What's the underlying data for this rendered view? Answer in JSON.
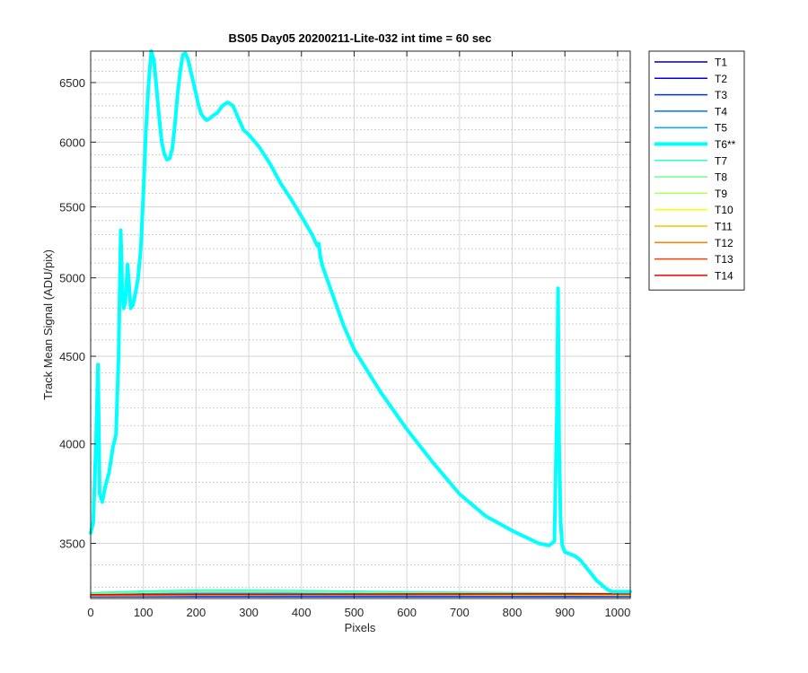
{
  "chart_data": {
    "type": "line",
    "title": "BS05 Day05 20200211-Lite-032 int time = 60 sec",
    "xlabel": "Pixels",
    "ylabel": "Track Mean Signal (ADU/pix)",
    "xlim": [
      0,
      1024
    ],
    "ylim": [
      3250,
      6780
    ],
    "y_scale": "log",
    "grid": true,
    "minor_grid": true,
    "legend_position": "outside-right",
    "xticks": [
      0,
      100,
      200,
      300,
      400,
      500,
      600,
      700,
      800,
      900,
      1000
    ],
    "yticks": [
      3500,
      4000,
      4500,
      5000,
      5500,
      6000,
      6500
    ],
    "yminor": [
      3300,
      3400,
      3500,
      3600,
      3700,
      3800,
      3900,
      4000,
      4100,
      4200,
      4300,
      4400,
      4500,
      4600,
      4700,
      4800,
      4900,
      5000,
      5100,
      5200,
      5300,
      5400,
      5500,
      5600,
      5700,
      5800,
      5900,
      6000,
      6100,
      6200,
      6300,
      6400,
      6500,
      6600,
      6700
    ],
    "highlighted_series": "T6**",
    "series": [
      {
        "name": "T1",
        "color": "#00008f",
        "x": [
          0,
          1024
        ],
        "y": [
          3258,
          3258
        ]
      },
      {
        "name": "T2",
        "color": "#0000df",
        "x": [
          0,
          1024
        ],
        "y": [
          3259,
          3259
        ]
      },
      {
        "name": "T3",
        "color": "#0030ff",
        "x": [
          0,
          1024
        ],
        "y": [
          3260,
          3260
        ]
      },
      {
        "name": "T4",
        "color": "#0070ff",
        "x": [
          0,
          1024
        ],
        "y": [
          3261,
          3262
        ]
      },
      {
        "name": "T5",
        "color": "#00b0ff",
        "x": [
          0,
          100,
          200,
          300,
          400,
          600,
          800,
          1024
        ],
        "y": [
          3266,
          3271,
          3273,
          3273,
          3272,
          3270,
          3268,
          3265
        ]
      },
      {
        "name": "T6**",
        "color": "#00ffff",
        "bold": true,
        "x": [
          0,
          5,
          10,
          14,
          17,
          22,
          28,
          35,
          42,
          48,
          53,
          57,
          60,
          63,
          66,
          70,
          73,
          76,
          80,
          85,
          90,
          95,
          100,
          105,
          110,
          115,
          120,
          125,
          130,
          135,
          140,
          145,
          150,
          155,
          160,
          165,
          170,
          175,
          180,
          185,
          190,
          195,
          200,
          205,
          210,
          215,
          220,
          225,
          230,
          240,
          250,
          260,
          270,
          280,
          290,
          300,
          320,
          340,
          360,
          380,
          400,
          420,
          430,
          433,
          436,
          440,
          460,
          480,
          500,
          550,
          600,
          650,
          700,
          750,
          800,
          850,
          870,
          880,
          885,
          887,
          889,
          892,
          895,
          900,
          910,
          920,
          930,
          940,
          960,
          980,
          990,
          1000,
          1024
        ],
        "y": [
          3550,
          3600,
          4000,
          4450,
          3740,
          3700,
          3780,
          3850,
          3980,
          4050,
          4500,
          5330,
          4900,
          4800,
          4850,
          5090,
          4950,
          4800,
          4820,
          4900,
          5000,
          5200,
          5600,
          6100,
          6500,
          6780,
          6700,
          6450,
          6200,
          6000,
          5900,
          5860,
          5870,
          5950,
          6150,
          6400,
          6600,
          6750,
          6760,
          6700,
          6600,
          6500,
          6400,
          6300,
          6230,
          6200,
          6180,
          6190,
          6210,
          6240,
          6300,
          6330,
          6300,
          6200,
          6100,
          6060,
          5960,
          5830,
          5680,
          5560,
          5430,
          5300,
          5220,
          5235,
          5140,
          5080,
          4880,
          4690,
          4540,
          4290,
          4080,
          3900,
          3740,
          3630,
          3560,
          3500,
          3490,
          3510,
          4200,
          4930,
          4000,
          3600,
          3490,
          3460,
          3450,
          3440,
          3420,
          3390,
          3330,
          3290,
          3280,
          3280,
          3280
        ]
      },
      {
        "name": "T7",
        "color": "#30ffcf",
        "x": [
          0,
          100,
          200,
          300,
          400,
          600,
          800,
          1024
        ],
        "y": [
          3275,
          3283,
          3287,
          3287,
          3285,
          3280,
          3276,
          3272
        ]
      },
      {
        "name": "T8",
        "color": "#70ff8f",
        "x": [
          0,
          100,
          200,
          300,
          400,
          600,
          800,
          1024
        ],
        "y": [
          3270,
          3277,
          3280,
          3280,
          3278,
          3274,
          3271,
          3268
        ]
      },
      {
        "name": "T9",
        "color": "#afff50",
        "x": [
          0,
          200,
          400,
          600,
          800,
          1024
        ],
        "y": [
          3264,
          3268,
          3268,
          3267,
          3266,
          3264
        ]
      },
      {
        "name": "T10",
        "color": "#ffff00",
        "x": [
          0,
          200,
          400,
          600,
          800,
          1024
        ],
        "y": [
          3262,
          3265,
          3266,
          3266,
          3265,
          3264
        ]
      },
      {
        "name": "T11",
        "color": "#ffbf00",
        "x": [
          0,
          200,
          400,
          600,
          800,
          1024
        ],
        "y": [
          3263,
          3265,
          3267,
          3267,
          3266,
          3266
        ]
      },
      {
        "name": "T12",
        "color": "#ff7f00",
        "x": [
          0,
          200,
          400,
          600,
          800,
          1024
        ],
        "y": [
          3265,
          3267,
          3268,
          3268,
          3268,
          3268
        ]
      },
      {
        "name": "T13",
        "color": "#ff3f00",
        "x": [
          0,
          200,
          400,
          600,
          800,
          1024
        ],
        "y": [
          3266,
          3268,
          3269,
          3269,
          3270,
          3270
        ]
      },
      {
        "name": "T14",
        "color": "#ef0000",
        "x": [
          0,
          200,
          400,
          600,
          800,
          1024
        ],
        "y": [
          3267,
          3268,
          3269,
          3270,
          3270,
          3271
        ]
      }
    ]
  }
}
